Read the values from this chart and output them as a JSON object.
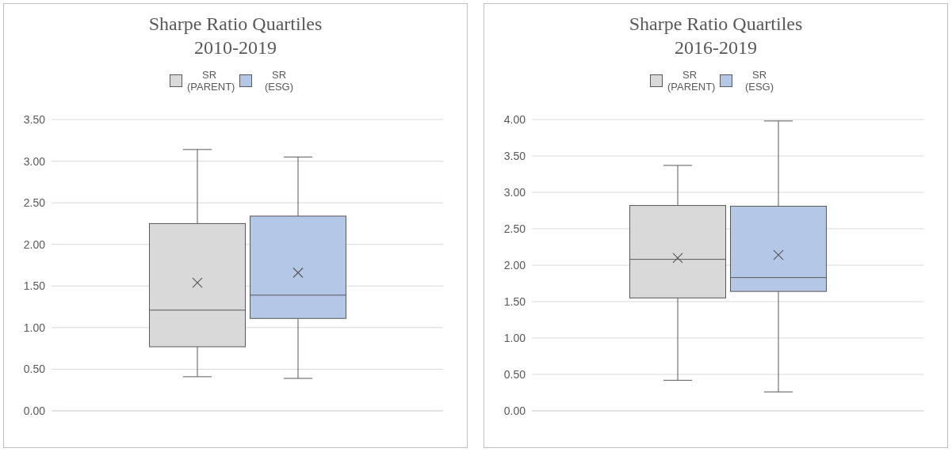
{
  "chart_data": [
    {
      "type": "box",
      "title": "Sharpe Ratio Quartiles",
      "subtitle": "2010-2019",
      "categories": [
        null
      ],
      "ylim": [
        0,
        3.5
      ],
      "yticks": [
        {
          "value": 0,
          "label": "0.00"
        },
        {
          "value": 0.5,
          "label": "0.50"
        },
        {
          "value": 1,
          "label": "1.00"
        },
        {
          "value": 1.5,
          "label": "1.50"
        },
        {
          "value": 2,
          "label": "2.00"
        },
        {
          "value": 2.5,
          "label": "2.50"
        },
        {
          "value": 3,
          "label": "3.00"
        },
        {
          "value": 3.5,
          "label": "3.50"
        }
      ],
      "grid": "y",
      "legend": "top",
      "series": [
        {
          "name": "SR (PARENT)",
          "color": "#d9d9d9",
          "boxes": [
            {
              "low": 0.41,
              "q1": 0.77,
              "median": 1.21,
              "q3": 2.25,
              "high": 3.14,
              "mean": 1.54
            }
          ]
        },
        {
          "name": "SR (ESG)",
          "color": "#b4c7e7",
          "boxes": [
            {
              "low": 0.39,
              "q1": 1.11,
              "median": 1.39,
              "q3": 2.34,
              "high": 3.05,
              "mean": 1.66
            }
          ]
        }
      ]
    },
    {
      "type": "box",
      "title": "Sharpe Ratio Quartiles",
      "subtitle": "2016-2019",
      "categories": [
        null
      ],
      "ylim": [
        0,
        4
      ],
      "yticks": [
        {
          "value": 0,
          "label": "0.00"
        },
        {
          "value": 0.5,
          "label": "0.50"
        },
        {
          "value": 1,
          "label": "1.00"
        },
        {
          "value": 1.5,
          "label": "1.50"
        },
        {
          "value": 2,
          "label": "2.00"
        },
        {
          "value": 2.5,
          "label": "2.50"
        },
        {
          "value": 3,
          "label": "3.00"
        },
        {
          "value": 3.5,
          "label": "3.50"
        },
        {
          "value": 4,
          "label": "4.00"
        }
      ],
      "grid": "y",
      "legend": "top",
      "series": [
        {
          "name": "SR (PARENT)",
          "color": "#d9d9d9",
          "boxes": [
            {
              "low": 0.42,
              "q1": 1.55,
              "median": 2.08,
              "q3": 2.82,
              "high": 3.37,
              "mean": 2.1
            }
          ]
        },
        {
          "name": "SR (ESG)",
          "color": "#b4c7e7",
          "boxes": [
            {
              "low": 0.26,
              "q1": 1.64,
              "median": 1.83,
              "q3": 2.81,
              "high": 3.98,
              "mean": 2.14
            }
          ]
        }
      ]
    }
  ]
}
